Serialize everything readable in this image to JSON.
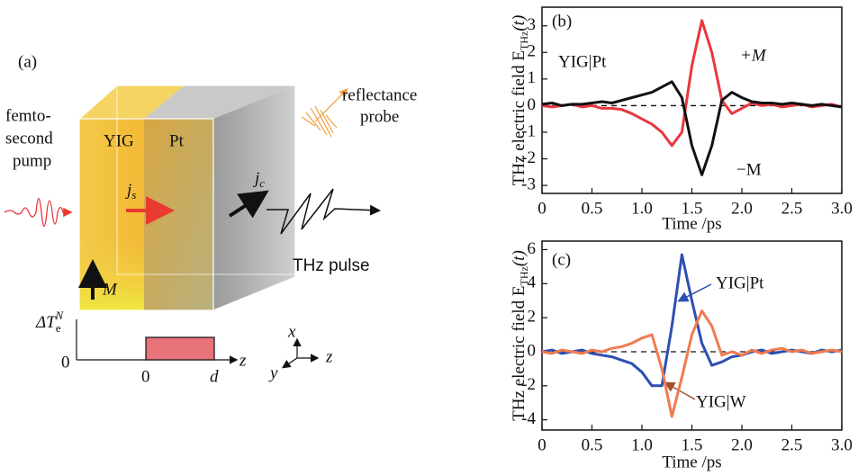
{
  "diagram": {
    "labels": [
      "(a)",
      "femto-",
      "second",
      "pump",
      "YIG",
      "Pt",
      "j",
      "s",
      "j",
      "c",
      "reflectance",
      "probe",
      "THz pulse",
      "M",
      "ΔT",
      "e",
      "N",
      "0",
      "0",
      "d",
      "z",
      "x",
      "y",
      "z"
    ]
  },
  "chart_data": [
    {
      "type": "line",
      "x_label": "Time /ps",
      "y_label": "THz electric field E",
      "y_label_subscript": "THz",
      "y_label_suffix": "(t)",
      "x": [
        0,
        0.1,
        0.2,
        0.3,
        0.4,
        0.5,
        0.6,
        0.7,
        0.8,
        0.9,
        1.0,
        1.1,
        1.2,
        1.3,
        1.4,
        1.5,
        1.6,
        1.7,
        1.8,
        1.9,
        2.0,
        2.1,
        2.2,
        2.3,
        2.4,
        2.5,
        2.6,
        2.7,
        2.8,
        2.9,
        3.0
      ],
      "series": [
        {
          "name": "+M",
          "color": "#e8383d",
          "values": [
            0,
            -0.05,
            0,
            0.05,
            -0.05,
            0,
            -0.1,
            -0.1,
            -0.15,
            -0.3,
            -0.5,
            -0.7,
            -1.0,
            -1.5,
            -1.0,
            1.5,
            3.2,
            2.0,
            0.2,
            -0.3,
            -0.1,
            0.1,
            0,
            0.05,
            -0.05,
            0,
            0.05,
            -0.05,
            0,
            0.05,
            -0.05
          ]
        },
        {
          "name": "−M",
          "color": "#111111",
          "values": [
            0.05,
            0.1,
            0,
            0.05,
            0.05,
            0.1,
            0.15,
            0.1,
            0.2,
            0.3,
            0.4,
            0.5,
            0.7,
            0.9,
            0.3,
            -1.5,
            -2.6,
            -1.5,
            0.2,
            0.5,
            0.3,
            0.15,
            0.1,
            0.1,
            0.05,
            0.1,
            0.05,
            0,
            0.05,
            0,
            -0.05
          ]
        }
      ],
      "annotations": [
        "(b)",
        "YIG|Pt"
      ],
      "xlim": [
        0,
        3
      ],
      "ylim": [
        -3.3,
        3.7
      ],
      "xticks": [
        0,
        0.5,
        {
          "value": 1,
          "label": "1.0"
        },
        1.5,
        {
          "value": 2,
          "label": "2.0"
        },
        2.5,
        {
          "value": 3,
          "label": "3.0"
        }
      ],
      "yticks": [
        -3,
        -2,
        -1,
        0,
        1,
        2,
        3
      ],
      "reference_line": 0
    },
    {
      "type": "line",
      "x_label": "Time /ps",
      "y_label": "THz electric field E",
      "y_label_subscript": "THz",
      "y_label_suffix": "(t)",
      "x": [
        0,
        0.1,
        0.2,
        0.3,
        0.4,
        0.5,
        0.6,
        0.7,
        0.8,
        0.9,
        1.0,
        1.1,
        1.2,
        1.3,
        1.4,
        1.5,
        1.6,
        1.7,
        1.8,
        1.9,
        2.0,
        2.1,
        2.2,
        2.3,
        2.4,
        2.5,
        2.6,
        2.7,
        2.8,
        2.9,
        3.0
      ],
      "series": [
        {
          "name": "YIG|Pt",
          "color": "#2d4fb0",
          "values": [
            0,
            0.1,
            -0.1,
            0,
            0.1,
            -0.1,
            -0.2,
            -0.3,
            -0.5,
            -0.7,
            -1.2,
            -2.0,
            -2.0,
            1.5,
            5.7,
            3.0,
            0.5,
            -0.8,
            -0.6,
            -0.3,
            -0.2,
            0,
            0.1,
            -0.1,
            0,
            0.1,
            0,
            -0.1,
            0.1,
            0,
            0.1
          ]
        },
        {
          "name": "YIG|W",
          "color": "#f07b4f",
          "values": [
            0,
            -0.1,
            0.1,
            0,
            -0.1,
            0.1,
            0,
            0.2,
            0.3,
            0.5,
            0.8,
            1.0,
            -1.0,
            -3.8,
            -1.5,
            1.0,
            2.4,
            1.5,
            -0.2,
            0,
            -0.2,
            0.1,
            -0.1,
            0.1,
            0.2,
            0,
            0.1,
            -0.1,
            0,
            0.1,
            0
          ]
        }
      ],
      "annotations": [
        "(c)"
      ],
      "xlim": [
        0,
        3
      ],
      "ylim": [
        -4.6,
        6.5
      ],
      "xticks": [
        0,
        0.5,
        {
          "value": 1,
          "label": "1.0"
        },
        1.5,
        {
          "value": 2,
          "label": "2.0"
        },
        2.5,
        {
          "value": 3,
          "label": "3.0"
        }
      ],
      "yticks": [
        -4,
        -2,
        0,
        2,
        4,
        6
      ],
      "reference_line": 0
    }
  ]
}
